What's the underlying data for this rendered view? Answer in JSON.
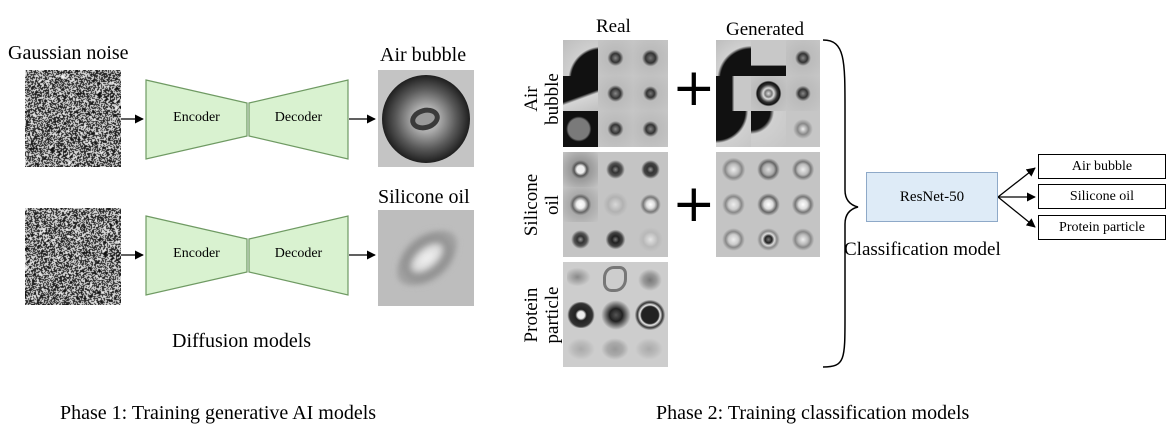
{
  "phase1": {
    "input_label": "Gaussian noise",
    "encoder_label": "Encoder",
    "decoder_label": "Decoder",
    "output_top_label": "Air bubble",
    "output_bottom_label": "Silicone oil",
    "models_caption": "Diffusion models",
    "caption": "Phase 1: Training generative AI models"
  },
  "phase2": {
    "col_real": "Real",
    "col_generated": "Generated",
    "row_air": "Air\nbubble",
    "row_silicone": "Silicone\noil",
    "row_protein": "Protein\nparticle",
    "plus_symbol": "+",
    "model_label": "ResNet-50",
    "model_caption": "Classification model",
    "outputs": [
      "Air bubble",
      "Silicone oil",
      "Protein particle"
    ],
    "caption": "Phase 2: Training classification models"
  },
  "colors": {
    "block_fill": "#d9f2d0",
    "block_stroke": "#6f9a63",
    "resnet_fill": "#deebf7",
    "resnet_stroke": "#8ea9c8",
    "tile_background": "#bfbfbf"
  }
}
